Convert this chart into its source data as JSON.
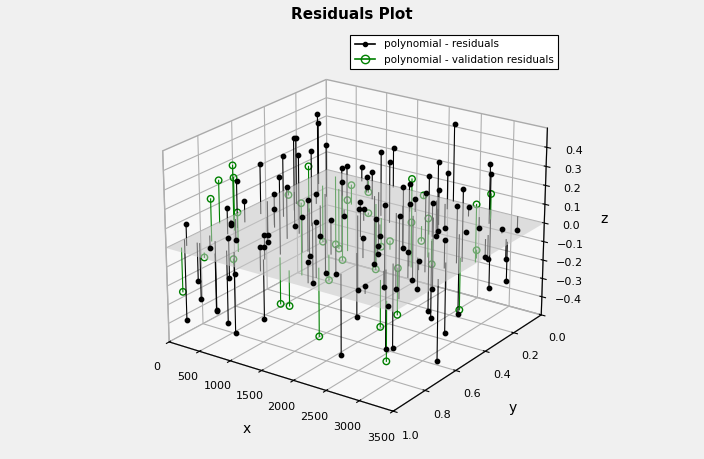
{
  "title": "Residuals Plot",
  "xlabel": "x",
  "ylabel": "y",
  "zlabel": "z",
  "xlim": [
    0,
    3500
  ],
  "ylim": [
    0,
    1
  ],
  "zlim": [
    -0.5,
    0.5
  ],
  "xticks": [
    0,
    500,
    1000,
    1500,
    2000,
    2500,
    3000,
    3500
  ],
  "yticks": [
    0,
    0.2,
    0.4,
    0.6,
    0.8,
    1.0
  ],
  "zticks": [
    -0.4,
    -0.3,
    -0.2,
    -0.1,
    0,
    0.1,
    0.2,
    0.3,
    0.4
  ],
  "train_color": "black",
  "val_color": "green",
  "plane_color": "#c8c8c8",
  "plane_alpha": 0.55,
  "legend_labels": [
    "polynomial - residuals",
    "polynomial - validation residuals"
  ],
  "fig_facecolor": "#f0f0f0",
  "pane_facecolor": "#f8f8f8",
  "pane_edgecolor": "#aaaaaa",
  "n_train": 120,
  "n_val": 40,
  "seed_train": 42,
  "seed_val": 99,
  "elev": 22,
  "azim": -55
}
